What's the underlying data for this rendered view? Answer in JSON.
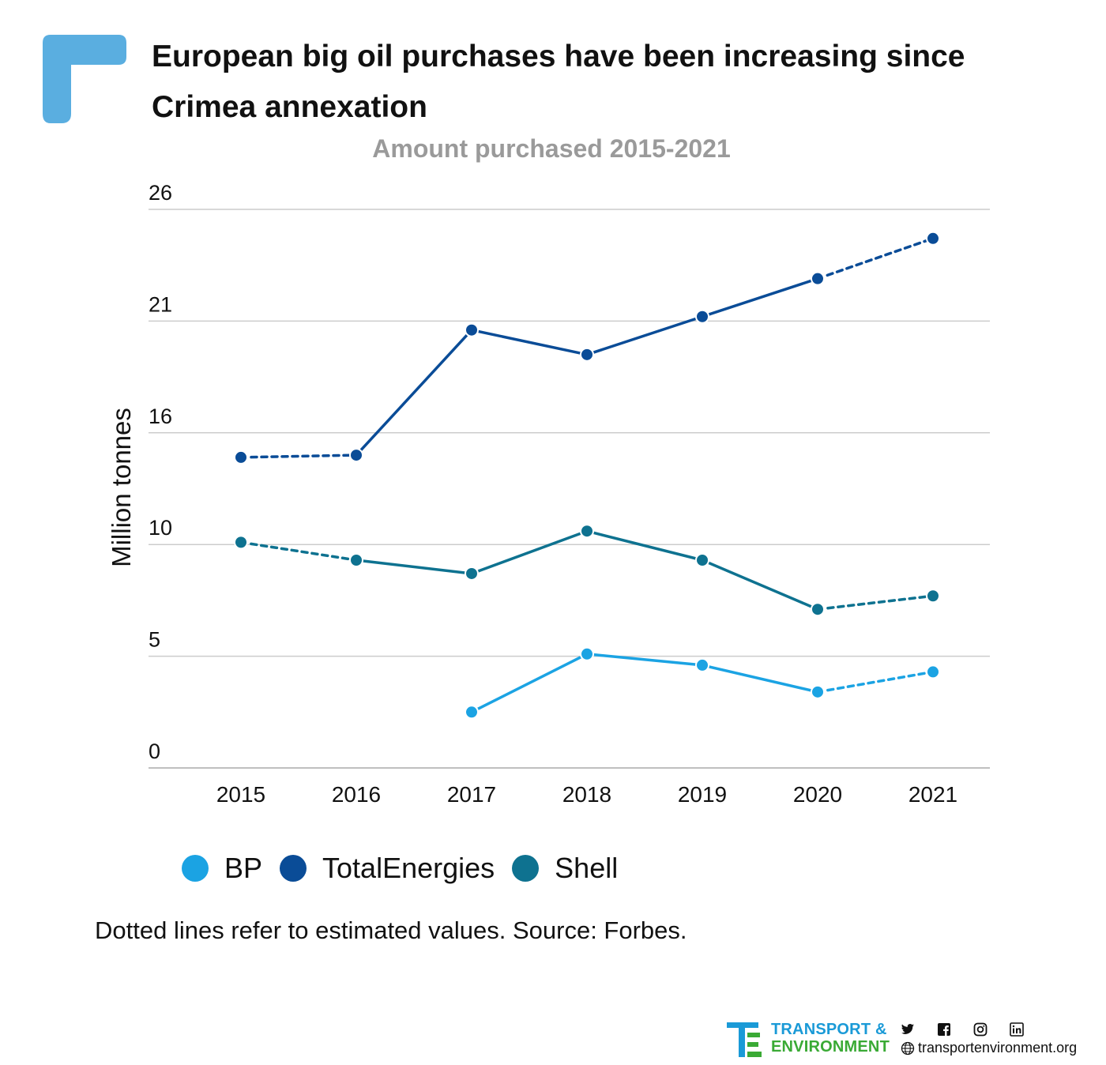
{
  "header": {
    "title": "European big oil purchases have been increasing since Crimea annexation",
    "subtitle": "Amount purchased 2015-2021"
  },
  "note": "Dotted lines refer to estimated values. Source: Forbes.",
  "footer": {
    "brand_line1": "TRANSPORT &",
    "brand_line2": "ENVIRONMENT",
    "website": "transportenvironment.org",
    "icons": [
      "twitter-icon",
      "facebook-icon",
      "instagram-icon",
      "linkedin-icon",
      "globe-icon"
    ]
  },
  "colors": {
    "accent": "#5aaee0",
    "grid": "#cccccc",
    "BP": "#1ba3e3",
    "TotalEnergies": "#0a4c97",
    "Shell": "#0e7290"
  },
  "chart_data": {
    "type": "line",
    "title": "Amount purchased 2015-2021",
    "ylabel": "Million tonnes",
    "xlabel": "",
    "x": [
      "2015",
      "2016",
      "2017",
      "2018",
      "2019",
      "2020",
      "2021"
    ],
    "yticks": [
      0,
      5,
      10,
      16,
      21,
      26
    ],
    "ylim": [
      0,
      25
    ],
    "grid": true,
    "legend": "bottom-left",
    "series": [
      {
        "name": "BP",
        "color": "#1ba3e3",
        "values": [
          null,
          null,
          2.5,
          5.1,
          4.6,
          3.4,
          4.3
        ],
        "estimated": [
          false,
          false,
          false,
          false,
          false,
          true,
          true
        ]
      },
      {
        "name": "TotalEnergies",
        "color": "#0a4c97",
        "values": [
          13.9,
          14.0,
          19.6,
          18.5,
          20.2,
          21.9,
          23.7
        ],
        "estimated": [
          true,
          true,
          false,
          false,
          false,
          true,
          true
        ]
      },
      {
        "name": "Shell",
        "color": "#0e7290",
        "values": [
          10.1,
          9.3,
          8.7,
          10.6,
          9.3,
          7.1,
          7.7
        ],
        "estimated": [
          true,
          true,
          false,
          false,
          false,
          true,
          true
        ]
      }
    ]
  }
}
